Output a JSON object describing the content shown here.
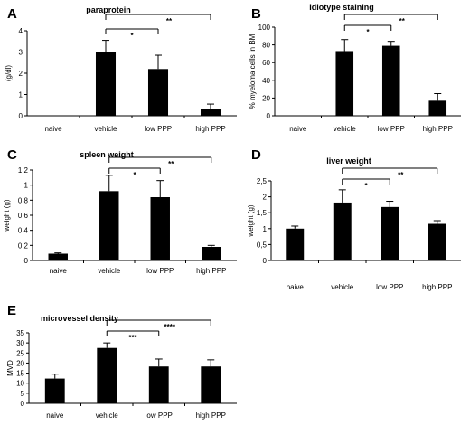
{
  "chart_data": [
    {
      "panel": "A",
      "type": "bar",
      "title": "paraprotein",
      "ylabel": "(g/dl)",
      "categories": [
        "naive",
        "vehicle",
        "low PPP",
        "high PPP"
      ],
      "values": [
        0,
        3.0,
        2.2,
        0.3
      ],
      "errors": [
        0,
        0.55,
        0.65,
        0.25
      ],
      "ylim": [
        0,
        4
      ],
      "yticks": [
        "0",
        "1",
        "2",
        "3",
        "4"
      ],
      "grid": false,
      "significance": [
        {
          "from": 1,
          "to": 2,
          "label": "*"
        },
        {
          "from": 1,
          "to": 3,
          "label": "**"
        }
      ]
    },
    {
      "panel": "B",
      "type": "bar",
      "title": "Idiotype staining",
      "ylabel": "% myeloma cells in BM",
      "categories": [
        "naive",
        "vehicle",
        "low PPP",
        "high PPP"
      ],
      "values": [
        0,
        73,
        79,
        17
      ],
      "errors": [
        0,
        13,
        5,
        8
      ],
      "ylim": [
        0,
        100
      ],
      "yticks": [
        "0",
        "20",
        "40",
        "60",
        "80",
        "100"
      ],
      "grid": false,
      "significance": [
        {
          "from": 1,
          "to": 2,
          "label": "*"
        },
        {
          "from": 1,
          "to": 3,
          "label": "**"
        }
      ]
    },
    {
      "panel": "C",
      "type": "bar",
      "title": "spleen weight",
      "ylabel": "weight (g)",
      "categories": [
        "naive",
        "vehicle",
        "low PPP",
        "high PPP"
      ],
      "values": [
        0.09,
        0.92,
        0.84,
        0.18
      ],
      "errors": [
        0.01,
        0.21,
        0.22,
        0.02
      ],
      "ylim": [
        0,
        1.2
      ],
      "yticks": [
        "0",
        "0,2",
        "0,4",
        "0,6",
        "0,8",
        "1",
        "1,2"
      ],
      "grid": false,
      "significance": [
        {
          "from": 1,
          "to": 2,
          "label": "*"
        },
        {
          "from": 1,
          "to": 3,
          "label": "**"
        }
      ]
    },
    {
      "panel": "D",
      "type": "bar",
      "title": "liver weight",
      "ylabel": "weight (g)",
      "categories": [
        "naive",
        "vehicle",
        "low PPP",
        "high PPP"
      ],
      "values": [
        1.0,
        1.82,
        1.68,
        1.15
      ],
      "errors": [
        0.08,
        0.4,
        0.18,
        0.1
      ],
      "ylim": [
        0,
        2.5
      ],
      "yticks": [
        "0",
        "0,5",
        "1",
        "1,5",
        "2",
        "2,5"
      ],
      "grid": false,
      "significance": [
        {
          "from": 1,
          "to": 2,
          "label": "*"
        },
        {
          "from": 1,
          "to": 3,
          "label": "**"
        }
      ]
    },
    {
      "panel": "E",
      "type": "bar",
      "title": "microvessel density",
      "ylabel": "MVD",
      "categories": [
        "naive",
        "vehicle",
        "low PPP",
        "high PPP"
      ],
      "values": [
        12.3,
        27.5,
        18.3,
        18.3
      ],
      "errors": [
        2.2,
        2.5,
        3.7,
        3.3
      ],
      "ylim": [
        0,
        35
      ],
      "yticks": [
        "0",
        "5",
        "10",
        "15",
        "20",
        "25",
        "30",
        "35"
      ],
      "grid": false,
      "significance": [
        {
          "from": 1,
          "to": 2,
          "label": "***"
        },
        {
          "from": 1,
          "to": 3,
          "label": "****"
        }
      ]
    }
  ]
}
